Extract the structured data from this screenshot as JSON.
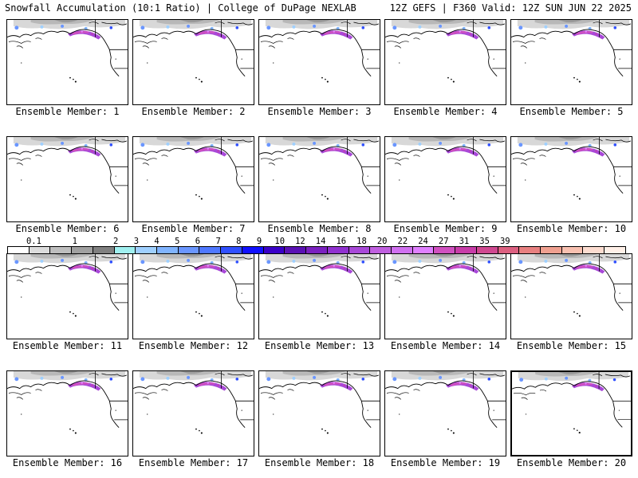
{
  "header": {
    "left": "Snowfall Accumulation (10:1 Ratio) | College of DuPage NEXLAB",
    "right": "12Z GEFS | F360 Valid: 12Z SUN JUN 22 2025"
  },
  "members": [
    {
      "label": "Ensemble Member: 1"
    },
    {
      "label": "Ensemble Member: 2"
    },
    {
      "label": "Ensemble Member: 3"
    },
    {
      "label": "Ensemble Member: 4"
    },
    {
      "label": "Ensemble Member: 5"
    },
    {
      "label": "Ensemble Member: 6"
    },
    {
      "label": "Ensemble Member: 7"
    },
    {
      "label": "Ensemble Member: 8"
    },
    {
      "label": "Ensemble Member: 9"
    },
    {
      "label": "Ensemble Member: 10"
    },
    {
      "label": "Ensemble Member: 11"
    },
    {
      "label": "Ensemble Member: 12"
    },
    {
      "label": "Ensemble Member: 13"
    },
    {
      "label": "Ensemble Member: 14"
    },
    {
      "label": "Ensemble Member: 15"
    },
    {
      "label": "Ensemble Member: 16"
    },
    {
      "label": "Ensemble Member: 17"
    },
    {
      "label": "Ensemble Member: 18"
    },
    {
      "label": "Ensemble Member: 19"
    },
    {
      "label": "Ensemble Member: 20",
      "selected": true
    }
  ],
  "legend": {
    "labels": [
      "0.1",
      "1",
      "2",
      "3",
      "4",
      "5",
      "6",
      "7",
      "8",
      "9",
      "10",
      "12",
      "14",
      "16",
      "18",
      "20",
      "22",
      "24",
      "27",
      "31",
      "35",
      "39"
    ],
    "colors": [
      "#ffffff",
      "#dcdcdc",
      "#bebebe",
      "#a0a0a0",
      "#808080",
      "#a0f0f0",
      "#9fd0ff",
      "#80b4ff",
      "#6a96ff",
      "#4f78ff",
      "#3050ff",
      "#1010ff",
      "#3a00c8",
      "#5a10b4",
      "#7a20c0",
      "#9030d0",
      "#a848d8",
      "#c060e0",
      "#d070f0",
      "#e080ff",
      "#d050c0",
      "#c83ca8",
      "#d04890",
      "#dc6080",
      "#e88080",
      "#f0a090",
      "#f8c0b0",
      "#fcdcd0",
      "#fff0e8"
    ]
  }
}
